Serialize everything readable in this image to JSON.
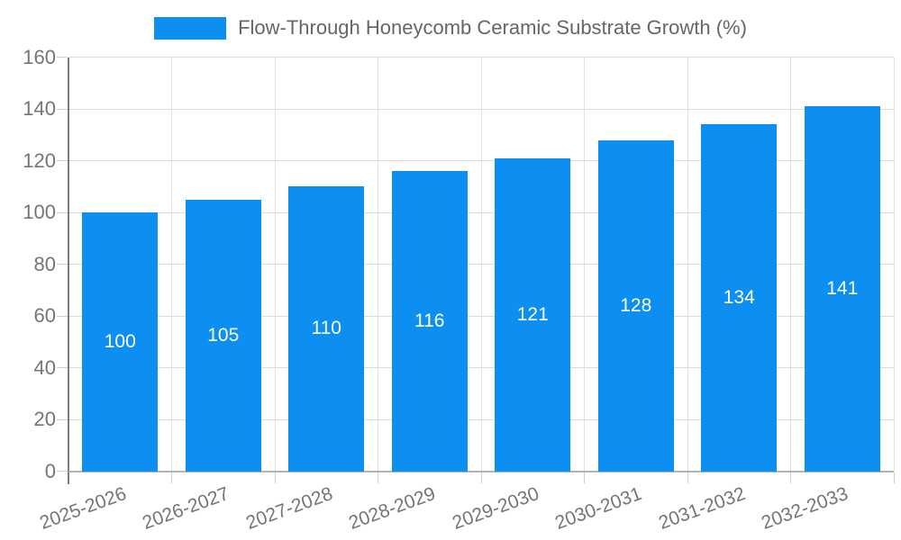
{
  "chart_data": {
    "type": "bar",
    "title": "Flow-Through Honeycomb Ceramic Substrate Growth (%)",
    "categories": [
      "2025-2026",
      "2026-2027",
      "2027-2028",
      "2028-2029",
      "2029-2030",
      "2030-2031",
      "2031-2032",
      "2032-2033"
    ],
    "values": [
      100,
      105,
      110,
      116,
      121,
      128,
      134,
      141
    ],
    "xlabel": "",
    "ylabel": "",
    "ylim": [
      0,
      160
    ],
    "ytick_step": 20,
    "grid": true,
    "legend_position": "top",
    "value_labels": "inside-center",
    "bar_color": "#0D8FF2",
    "value_label_color": "#ffffff"
  },
  "legend": {
    "label": "Flow-Through Honeycomb Ceramic Substrate Growth (%)"
  }
}
